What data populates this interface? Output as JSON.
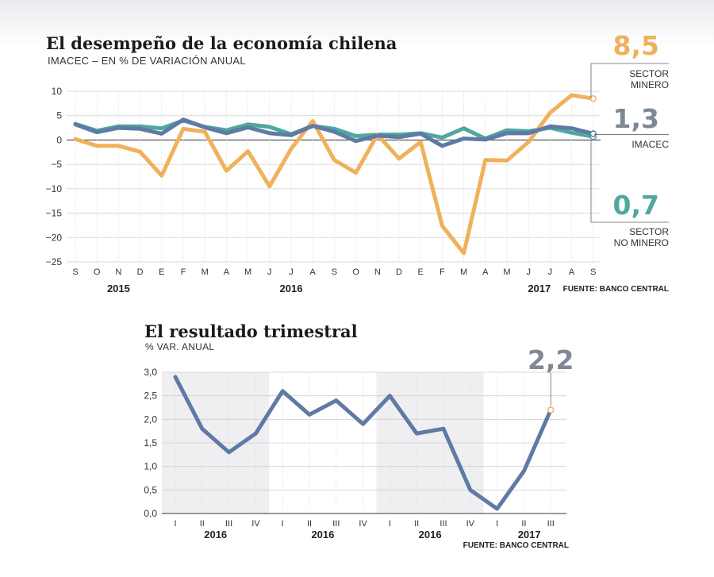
{
  "chart_data": [
    {
      "type": "line",
      "title": "El desempeño de la economía chilena",
      "subtitle": "IMACEC – EN % DE VARIACIÓN ANUAL",
      "source": "FUENTE: BANCO CENTRAL",
      "x": [
        "S",
        "O",
        "N",
        "D",
        "E",
        "F",
        "M",
        "A",
        "M",
        "J",
        "J",
        "A",
        "S",
        "O",
        "N",
        "D",
        "E",
        "F",
        "M",
        "A",
        "M",
        "J",
        "J",
        "A",
        "S"
      ],
      "year_labels": [
        {
          "label": "2015",
          "at": 2
        },
        {
          "label": "2016",
          "at": 10
        },
        {
          "label": "2017",
          "at": 21.5
        }
      ],
      "ylim": [
        -25,
        10
      ],
      "yticks": [
        10,
        5,
        0,
        -5,
        -10,
        -15,
        -20,
        -25
      ],
      "grid": true,
      "series": [
        {
          "name": "SECTOR NO MINERO",
          "color": "#4fa89d",
          "values": [
            3.3,
            1.9,
            2.8,
            2.8,
            2.4,
            4.0,
            2.7,
            2.0,
            3.2,
            2.7,
            1.2,
            2.9,
            2.3,
            0.8,
            1.1,
            1.1,
            1.4,
            0.5,
            2.4,
            0.3,
            2.0,
            1.8,
            2.5,
            1.5,
            0.7
          ],
          "end_value": "0,7",
          "end_label": [
            "SECTOR",
            "NO MINERO"
          ]
        },
        {
          "name": "SECTOR MINERO",
          "color": "#f0b15c",
          "values": [
            0.2,
            -1.2,
            -1.2,
            -2.4,
            -7.3,
            2.3,
            1.7,
            -6.3,
            -2.3,
            -9.5,
            -1.8,
            3.9,
            -4.1,
            -6.7,
            1.1,
            -3.8,
            -0.4,
            -17.6,
            -23.2,
            -4.1,
            -4.2,
            -0.4,
            5.6,
            9.2,
            8.5
          ],
          "end_value": "8,5",
          "end_label": [
            "SECTOR",
            "MINERO"
          ]
        },
        {
          "name": "IMACEC",
          "color": "#5e7aa5",
          "values": [
            3.2,
            1.6,
            2.5,
            2.3,
            1.3,
            4.2,
            2.6,
            1.4,
            2.6,
            1.4,
            1.0,
            2.9,
            1.7,
            -0.2,
            0.9,
            0.6,
            1.3,
            -1.2,
            0.3,
            0.1,
            1.4,
            1.4,
            2.8,
            2.4,
            1.3
          ],
          "end_value": "1,3",
          "end_label": [
            "IMACEC"
          ]
        }
      ]
    },
    {
      "type": "line",
      "title": "El resultado trimestral",
      "subtitle": "% VAR. ANUAL",
      "source": "FUENTE: BANCO CENTRAL",
      "categories": [
        "I",
        "II",
        "III",
        "IV",
        "I",
        "II",
        "III",
        "IV",
        "I",
        "II",
        "III",
        "IV",
        "I",
        "II",
        "III"
      ],
      "year_labels": [
        {
          "label": "2016",
          "at": 1.5
        },
        {
          "label": "2016",
          "at": 5.5
        },
        {
          "label": "2016",
          "at": 9.5
        },
        {
          "label": "2017",
          "at": 13.2
        }
      ],
      "ylim": [
        0,
        3
      ],
      "yticks": [
        "3,0",
        "2,5",
        "2,0",
        "1,5",
        "1,0",
        "0,5",
        "0,0"
      ],
      "shaded_ranges": [
        [
          0,
          3
        ],
        [
          8,
          11
        ]
      ],
      "series": [
        {
          "name": "",
          "color": "#5e7aa5",
          "values": [
            2.9,
            1.8,
            1.3,
            1.7,
            2.6,
            2.1,
            2.4,
            1.9,
            2.5,
            1.7,
            1.8,
            0.5,
            0.1,
            0.9,
            2.2
          ],
          "end_value": "2,2",
          "end_marker_color": "#f0b15c"
        }
      ]
    }
  ]
}
